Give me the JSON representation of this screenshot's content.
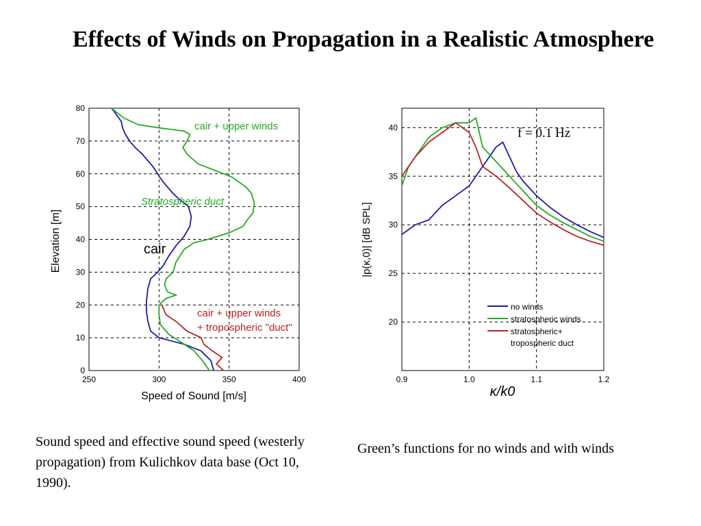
{
  "slide": {
    "title": "Effects of Winds on Propagation in a Realistic Atmosphere",
    "caption_left": "Sound speed and effective sound speed (westerly propagation) from Kulichkov data base (Oct 10, 1990).",
    "caption_right": "Green’s functions for no winds and with winds"
  },
  "chart_data": [
    {
      "type": "line",
      "xlabel": "Speed of Sound [m/s]",
      "ylabel": "Elevation [m]",
      "xlim": [
        250,
        400
      ],
      "ylim": [
        0,
        80
      ],
      "x_ticks": [
        "250",
        "300",
        "350",
        "400"
      ],
      "y_ticks": [
        "0",
        "10",
        "20",
        "30",
        "40",
        "50",
        "60",
        "70",
        "80"
      ],
      "grid": true,
      "annotations": [
        "cair + upper winds",
        "Stratospheric duct",
        "cair",
        "cair + upper winds",
        "+ tropospheric \"duct\""
      ],
      "series": [
        {
          "name": "cair",
          "color": "#1a1aa6",
          "points": [
            [
              339,
              0
            ],
            [
              337,
              3
            ],
            [
              330,
              6
            ],
            [
              318,
              8
            ],
            [
              300,
              10
            ],
            [
              294,
              12
            ],
            [
              292,
              15
            ],
            [
              291,
              18
            ],
            [
              291,
              21
            ],
            [
              292,
              25
            ],
            [
              294,
              28
            ],
            [
              299,
              30
            ],
            [
              303,
              32
            ],
            [
              307,
              35
            ],
            [
              312,
              38
            ],
            [
              318,
              41
            ],
            [
              322,
              44
            ],
            [
              323,
              47
            ],
            [
              321,
              50
            ],
            [
              315,
              52
            ],
            [
              310,
              54
            ],
            [
              306,
              56
            ],
            [
              302,
              58
            ],
            [
              299,
              60
            ],
            [
              296,
              62
            ],
            [
              292,
              64
            ],
            [
              288,
              66
            ],
            [
              283,
              68
            ],
            [
              279,
              70
            ],
            [
              276,
              72
            ],
            [
              274,
              74
            ],
            [
              273,
              76
            ],
            [
              268,
              79
            ],
            [
              266,
              80
            ]
          ]
        },
        {
          "name": "cair + upper winds",
          "color": "#22aa22",
          "points": [
            [
              336,
              0
            ],
            [
              331,
              3
            ],
            [
              325,
              6
            ],
            [
              318,
              8
            ],
            [
              307,
              11
            ],
            [
              301,
              14
            ],
            [
              300,
              17
            ],
            [
              300,
              20
            ],
            [
              305,
              22
            ],
            [
              312,
              23
            ],
            [
              306,
              24
            ],
            [
              304,
              26
            ],
            [
              305,
              28
            ],
            [
              310,
              30
            ],
            [
              312,
              33
            ],
            [
              315,
              35
            ],
            [
              318,
              37
            ],
            [
              325,
              39
            ],
            [
              335,
              40
            ],
            [
              350,
              42
            ],
            [
              360,
              44
            ],
            [
              363,
              46
            ],
            [
              367,
              48
            ],
            [
              368,
              51
            ],
            [
              366,
              54
            ],
            [
              362,
              56
            ],
            [
              352,
              59
            ],
            [
              340,
              61
            ],
            [
              328,
              63
            ],
            [
              320,
              66
            ],
            [
              317,
              68
            ],
            [
              320,
              70
            ],
            [
              322,
              72
            ],
            [
              318,
              73
            ],
            [
              300,
              74
            ],
            [
              285,
              75
            ],
            [
              275,
              77
            ],
            [
              266,
              80
            ]
          ]
        },
        {
          "name": "cair + upper winds + tropospheric \"duct\"",
          "color": "#bb2222",
          "points": [
            [
              346,
              0
            ],
            [
              341,
              2
            ],
            [
              345,
              4
            ],
            [
              338,
              6
            ],
            [
              332,
              8
            ],
            [
              330,
              10
            ],
            [
              320,
              12
            ],
            [
              312,
              15
            ],
            [
              305,
              17
            ],
            [
              302,
              20
            ]
          ]
        }
      ]
    },
    {
      "type": "line",
      "title": "f = 0.1 Hz",
      "xlabel": "κ/k0",
      "ylabel": "|p(κ,0)| [dB SPL]",
      "xlim": [
        0.9,
        1.2
      ],
      "ylim": [
        15,
        42
      ],
      "x_ticks": [
        "0.9",
        "1.0",
        "1.1",
        "1.2"
      ],
      "y_ticks": [
        "20",
        "25",
        "30",
        "35",
        "40"
      ],
      "grid": true,
      "legend": "bottom-right",
      "legend_entries": [
        "no winds",
        "stratospheric winds",
        "stratospheric+",
        "tropospheric duct"
      ],
      "series": [
        {
          "name": "no winds",
          "color": "#1a1aa6",
          "points": [
            [
              0.9,
              29
            ],
            [
              0.92,
              30
            ],
            [
              0.94,
              30.5
            ],
            [
              0.96,
              32
            ],
            [
              0.98,
              33
            ],
            [
              1.0,
              34
            ],
            [
              1.02,
              36
            ],
            [
              1.04,
              38
            ],
            [
              1.05,
              38.5
            ],
            [
              1.06,
              37
            ],
            [
              1.07,
              35.5
            ],
            [
              1.08,
              34.5
            ],
            [
              1.1,
              33
            ],
            [
              1.12,
              31.8
            ],
            [
              1.14,
              30.8
            ],
            [
              1.16,
              30
            ],
            [
              1.18,
              29.3
            ],
            [
              1.2,
              28.7
            ]
          ]
        },
        {
          "name": "stratospheric winds",
          "color": "#22aa22",
          "points": [
            [
              0.9,
              34
            ],
            [
              0.91,
              36
            ],
            [
              0.92,
              37
            ],
            [
              0.93,
              38
            ],
            [
              0.94,
              39
            ],
            [
              0.96,
              40
            ],
            [
              0.98,
              40.5
            ],
            [
              1.0,
              40.5
            ],
            [
              1.01,
              41
            ],
            [
              1.02,
              38
            ],
            [
              1.04,
              36.5
            ],
            [
              1.06,
              35
            ],
            [
              1.08,
              33.5
            ],
            [
              1.1,
              32
            ],
            [
              1.12,
              31
            ],
            [
              1.14,
              30.2
            ],
            [
              1.16,
              29.5
            ],
            [
              1.18,
              28.8
            ],
            [
              1.2,
              28.3
            ]
          ]
        },
        {
          "name": "stratospheric+ tropospheric duct",
          "color": "#bb2222",
          "points": [
            [
              0.9,
              35
            ],
            [
              0.92,
              37
            ],
            [
              0.94,
              38.5
            ],
            [
              0.96,
              39.5
            ],
            [
              0.98,
              40.5
            ],
            [
              1.0,
              39.5
            ],
            [
              1.01,
              38
            ],
            [
              1.02,
              36
            ],
            [
              1.04,
              35
            ],
            [
              1.06,
              33.8
            ],
            [
              1.08,
              32.5
            ],
            [
              1.1,
              31.2
            ],
            [
              1.12,
              30.3
            ],
            [
              1.14,
              29.5
            ],
            [
              1.16,
              28.8
            ],
            [
              1.18,
              28.3
            ],
            [
              1.2,
              27.9
            ]
          ]
        }
      ]
    }
  ]
}
